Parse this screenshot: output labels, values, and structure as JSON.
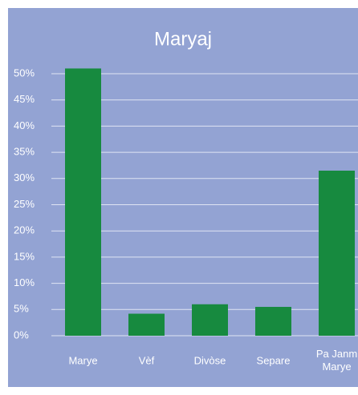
{
  "chart_data": {
    "type": "bar",
    "title": "Maryaj",
    "categories": [
      "Marye",
      "Vèf",
      "Divòse",
      "Separe",
      "Pa Janm Marye"
    ],
    "values": [
      51,
      4.2,
      6,
      5.5,
      31.5
    ],
    "color": "#178a3f",
    "ylim": [
      0,
      50
    ],
    "yticks": [
      {
        "value": 0,
        "label": "0%"
      },
      {
        "value": 5,
        "label": "5%"
      },
      {
        "value": 10,
        "label": "10%"
      },
      {
        "value": 15,
        "label": "15%"
      },
      {
        "value": 20,
        "label": "20%"
      },
      {
        "value": 25,
        "label": "25%"
      },
      {
        "value": 30,
        "label": "30%"
      },
      {
        "value": 35,
        "label": "35%"
      },
      {
        "value": 40,
        "label": "40%"
      },
      {
        "value": 45,
        "label": "45%"
      },
      {
        "value": 50,
        "label": "50%"
      }
    ],
    "grid": true
  }
}
